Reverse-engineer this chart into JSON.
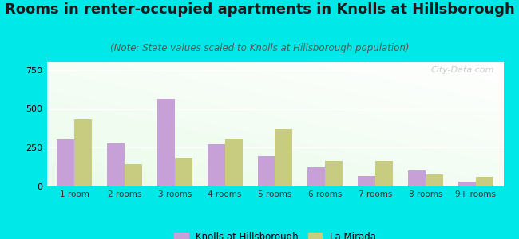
{
  "title": "Rooms in renter-occupied apartments in Knolls at Hillsborough",
  "subtitle": "(Note: State values scaled to Knolls at Hillsborough population)",
  "categories": [
    "1 room",
    "2 rooms",
    "3 rooms",
    "4 rooms",
    "5 rooms",
    "6 rooms",
    "7 rooms",
    "8 rooms",
    "9+ rooms"
  ],
  "knolls_values": [
    305,
    275,
    565,
    270,
    195,
    125,
    65,
    105,
    30
  ],
  "lamirada_values": [
    430,
    145,
    185,
    310,
    370,
    165,
    165,
    75,
    60
  ],
  "knolls_color": "#c8a0d8",
  "lamirada_color": "#c8cc80",
  "background_color": "#00e8e8",
  "ylim": [
    0,
    800
  ],
  "yticks": [
    0,
    250,
    500,
    750
  ],
  "watermark": "City-Data.com",
  "legend_knolls": "Knolls at Hillsborough",
  "legend_lamirada": "La Mirada",
  "title_fontsize": 13,
  "subtitle_fontsize": 8.5,
  "bar_width": 0.35
}
